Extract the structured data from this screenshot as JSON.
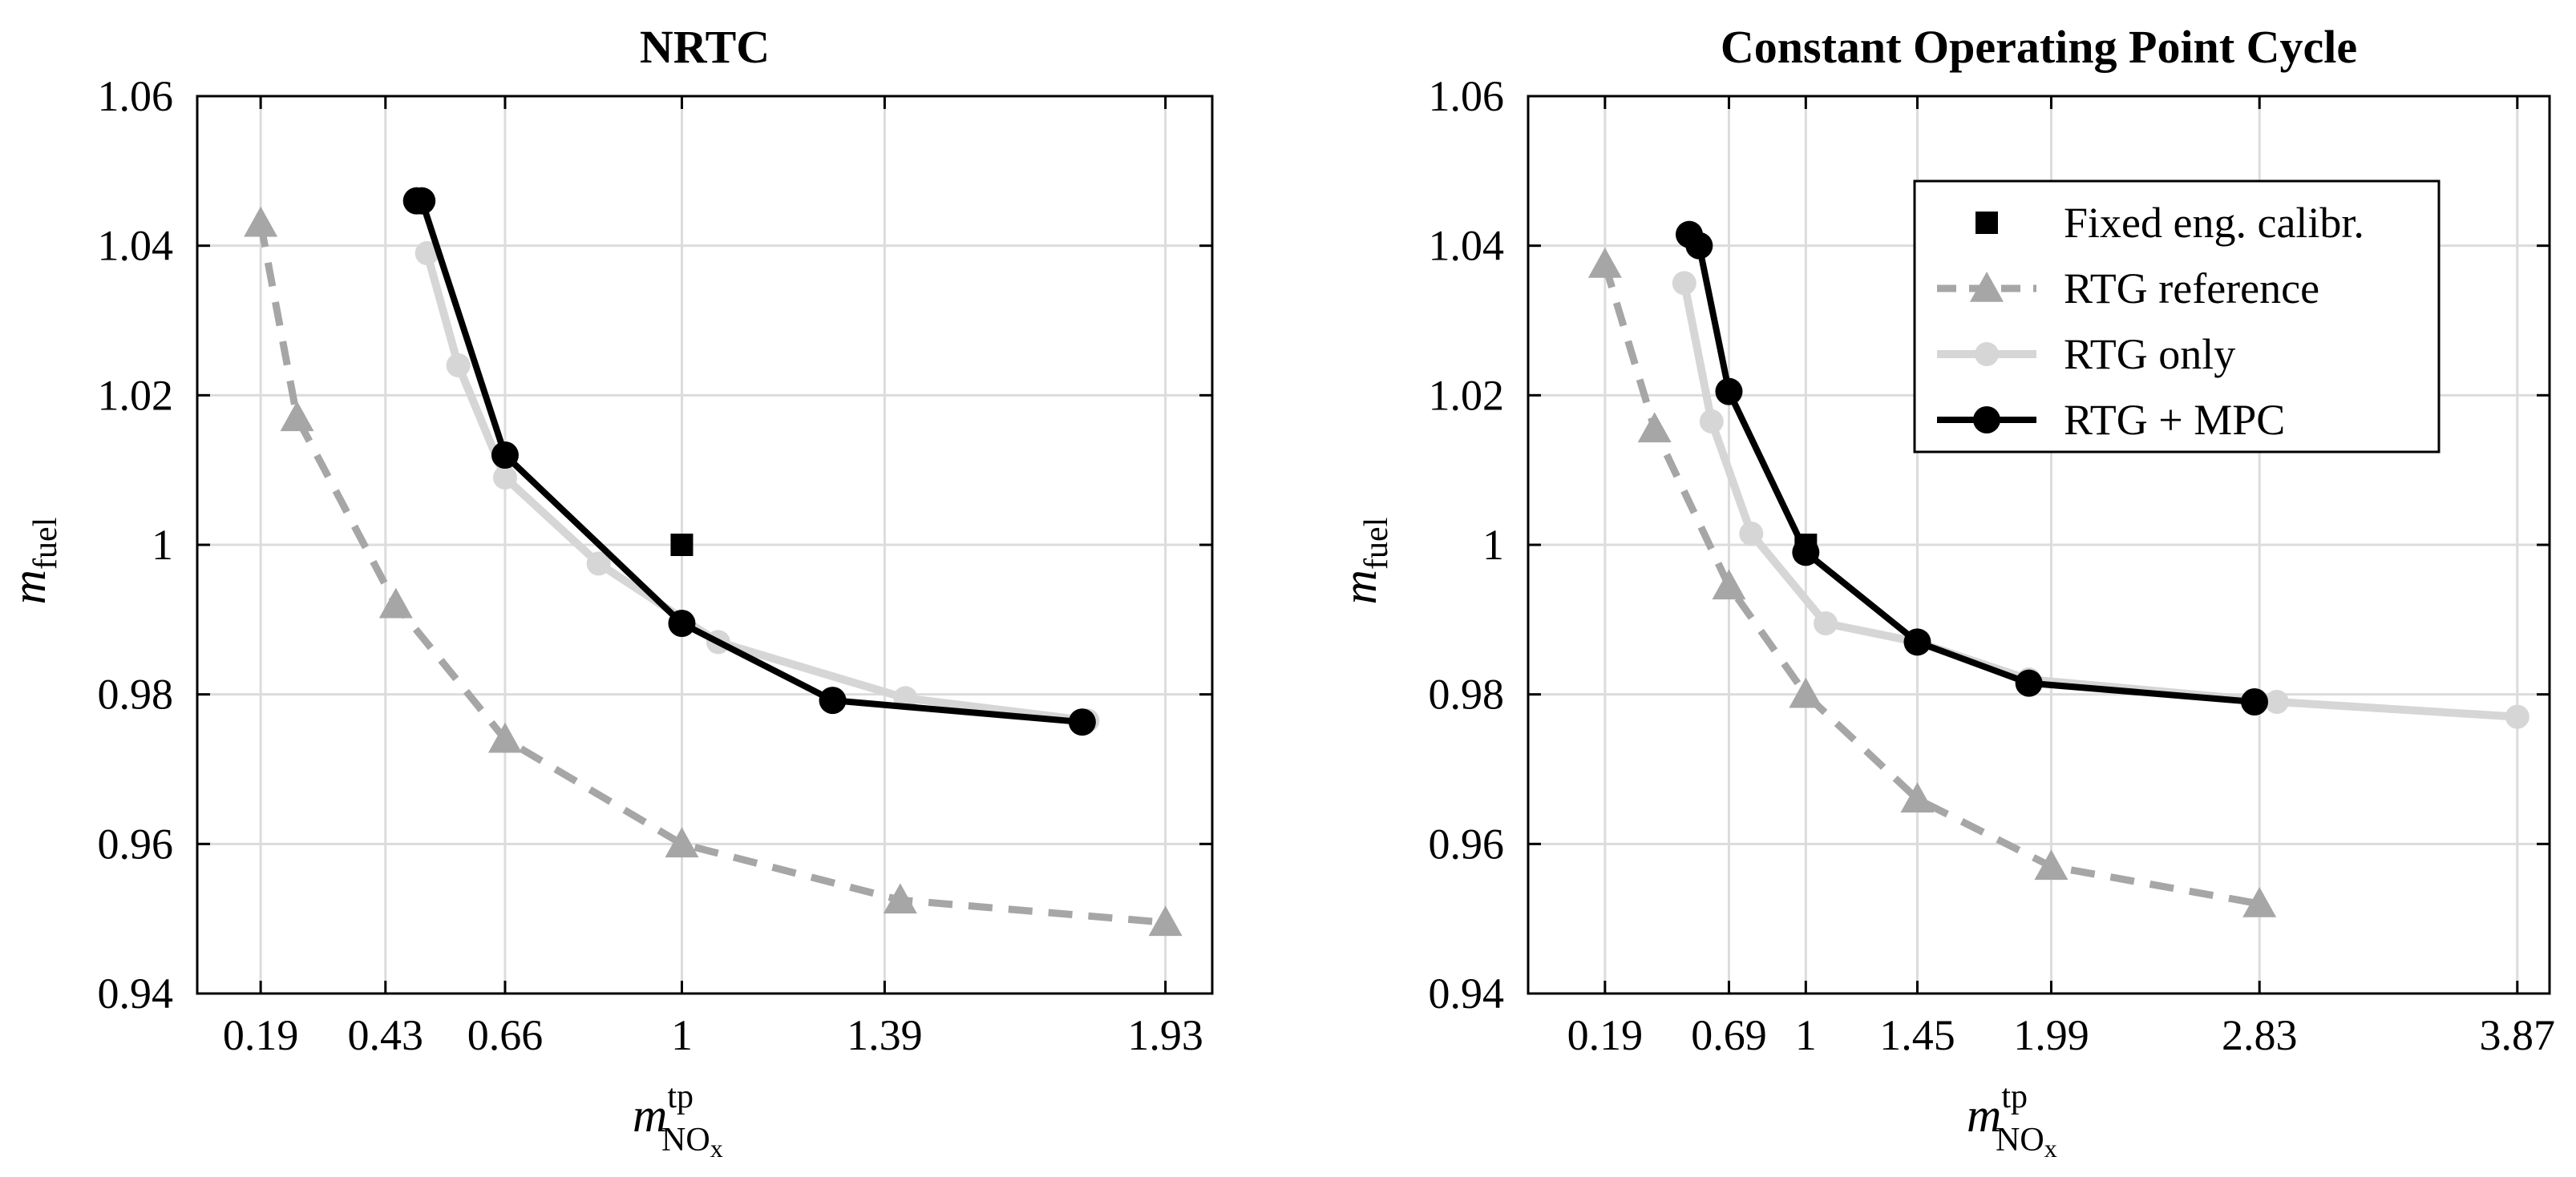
{
  "colors": {
    "fixed": "#000000",
    "rtg_reference": "#a6a6a6",
    "rtg_only": "#d6d6d6",
    "rtg_mpc": "#000000",
    "grid": "#dcdcdc"
  },
  "legend": {
    "fixed": "Fixed eng. calibr.",
    "rtg_reference": "RTG reference",
    "rtg_only": "RTG only",
    "rtg_mpc": "RTG + MPC"
  },
  "chart_data": [
    {
      "type": "line",
      "title": "NRTC",
      "ylabel": "m",
      "ylabel_sub": "fuel",
      "xlabel": "m",
      "xlabel_sup": "tp",
      "xlabel_sub": "NO",
      "xlabel_subsub": "x",
      "xlim": [
        0.068,
        2.02
      ],
      "ylim": [
        0.94,
        1.06
      ],
      "xticks": [
        0.19,
        0.43,
        0.66,
        1,
        1.39,
        1.93
      ],
      "xtick_labels": [
        "0.19",
        "0.43",
        "0.66",
        "1",
        "1.39",
        "1.93"
      ],
      "yticks": [
        0.94,
        0.96,
        0.98,
        1.0,
        1.02,
        1.04,
        1.06
      ],
      "ytick_labels": [
        "0.94",
        "0.96",
        "0.98",
        "1",
        "1.02",
        "1.04",
        "1.06"
      ],
      "grid": true,
      "legend": false,
      "series": [
        {
          "key": "rtg_reference",
          "name": "RTG reference",
          "marker": "triangle",
          "dash": true,
          "x": [
            0.19,
            0.26,
            0.45,
            0.66,
            1.0,
            1.42,
            1.93
          ],
          "y": [
            1.043,
            1.017,
            0.992,
            0.974,
            0.96,
            0.9525,
            0.9495
          ]
        },
        {
          "key": "rtg_only",
          "name": "RTG only",
          "marker": "circle-light",
          "x": [
            0.51,
            0.57,
            0.66,
            0.84,
            1.07,
            1.43,
            1.78
          ],
          "y": [
            1.039,
            1.024,
            1.009,
            0.9975,
            0.987,
            0.9795,
            0.9765
          ]
        },
        {
          "key": "rtg_mpc",
          "name": "RTG + MPC",
          "marker": "circle",
          "x": [
            0.49,
            0.5,
            0.66,
            1.0,
            1.29,
            1.77
          ],
          "y": [
            1.046,
            1.046,
            1.012,
            0.9895,
            0.9792,
            0.9763
          ]
        },
        {
          "key": "fixed",
          "name": "Fixed eng. calibr.",
          "marker": "square",
          "x": [
            1.0
          ],
          "y": [
            1.0
          ]
        }
      ]
    },
    {
      "type": "line",
      "title": "Constant Operating Point Cycle",
      "ylabel": "m",
      "ylabel_sub": "fuel",
      "xlabel": "m",
      "xlabel_sup": "tp",
      "xlabel_sub": "NO",
      "xlabel_subsub": "x",
      "xlim": [
        -0.12,
        4.0
      ],
      "ylim": [
        0.94,
        1.06
      ],
      "xticks": [
        0.19,
        0.69,
        1,
        1.45,
        1.99,
        2.83,
        3.87
      ],
      "xtick_labels": [
        "0.19",
        "0.69",
        "1",
        "1.45",
        "1.99",
        "2.83",
        "3.87"
      ],
      "yticks": [
        0.94,
        0.96,
        0.98,
        1.0,
        1.02,
        1.04,
        1.06
      ],
      "ytick_labels": [
        "0.94",
        "0.96",
        "0.98",
        "1",
        "1.02",
        "1.04",
        "1.06"
      ],
      "grid": true,
      "legend": true,
      "legend_position": "top-right",
      "series": [
        {
          "key": "rtg_reference",
          "name": "RTG reference",
          "marker": "triangle",
          "dash": true,
          "x": [
            0.19,
            0.39,
            0.69,
            1.0,
            1.45,
            1.99,
            2.83
          ],
          "y": [
            1.0375,
            1.0155,
            0.9945,
            0.98,
            0.966,
            0.957,
            0.952
          ]
        },
        {
          "key": "rtg_only",
          "name": "RTG only",
          "marker": "circle-light",
          "x": [
            0.51,
            0.62,
            0.78,
            1.08,
            1.45,
            1.9,
            2.9,
            3.87
          ],
          "y": [
            1.035,
            1.0165,
            1.0015,
            0.9895,
            0.987,
            0.982,
            0.979,
            0.977
          ]
        },
        {
          "key": "rtg_mpc",
          "name": "RTG + MPC",
          "marker": "circle",
          "x": [
            0.53,
            0.57,
            0.69,
            1.0,
            1.45,
            1.9,
            2.81
          ],
          "y": [
            1.0415,
            1.04,
            1.0205,
            0.999,
            0.987,
            0.9815,
            0.979
          ]
        },
        {
          "key": "fixed",
          "name": "Fixed eng. calibr.",
          "marker": "square",
          "x": [
            1.0
          ],
          "y": [
            1.0
          ]
        }
      ]
    }
  ]
}
